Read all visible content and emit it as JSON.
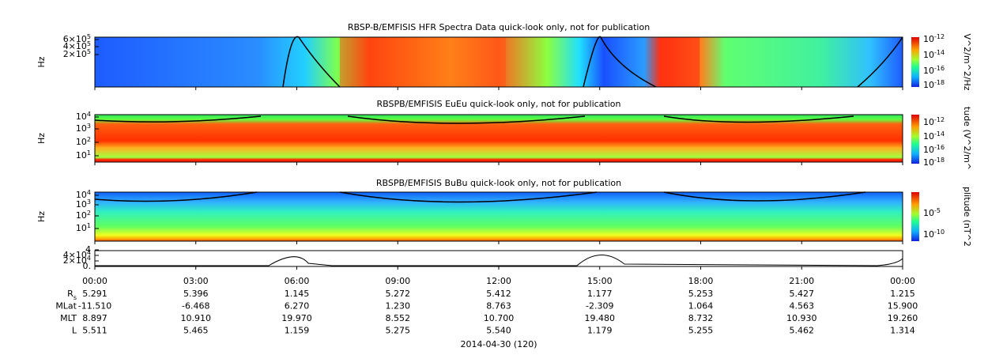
{
  "panels": [
    {
      "title": "RBSP-B/EMFISIS  HFR Spectra Data quick-look only, not for publication",
      "ylabel": "Hz",
      "yticks": [
        {
          "base": "6×10",
          "exp": "5"
        },
        {
          "base": "4×10",
          "exp": "5"
        },
        {
          "base": "2×10",
          "exp": "5"
        }
      ],
      "colorbar_label": "V^2/m^2/Hz",
      "colorbar_ticks": [
        {
          "base": "10",
          "exp": "-12"
        },
        {
          "base": "10",
          "exp": "-14"
        },
        {
          "base": "10",
          "exp": "-16"
        },
        {
          "base": "10",
          "exp": "-18"
        }
      ]
    },
    {
      "title": "RBSPB/EMFISIS  EuEu quick-look only, not for publication",
      "ylabel": "Hz",
      "yticks": [
        {
          "base": "10",
          "exp": "4"
        },
        {
          "base": "10",
          "exp": "3"
        },
        {
          "base": "10",
          "exp": "2"
        },
        {
          "base": "10",
          "exp": "1"
        }
      ],
      "colorbar_label": "tude (V^2/m^",
      "colorbar_ticks": [
        {
          "base": "10",
          "exp": "-12"
        },
        {
          "base": "10",
          "exp": "-14"
        },
        {
          "base": "10",
          "exp": "-16"
        },
        {
          "base": "10",
          "exp": "-18"
        }
      ]
    },
    {
      "title": "RBSPB/EMFISIS  BuBu quick-look only, not for publication",
      "ylabel": "Hz",
      "yticks": [
        {
          "base": "10",
          "exp": "4"
        },
        {
          "base": "10",
          "exp": "3"
        },
        {
          "base": "10",
          "exp": "2"
        },
        {
          "base": "10",
          "exp": "1"
        }
      ],
      "colorbar_label": "plitude (nT^2",
      "colorbar_ticks": [
        {
          "base": "10",
          "exp": "-5"
        },
        {
          "base": "10",
          "exp": "-10"
        }
      ]
    },
    {
      "yticks": [
        {
          "base": "4"
        },
        {
          "base": "4×10",
          "exp": "4"
        },
        {
          "base": "2×10",
          "exp": "4"
        },
        {
          "base": "0."
        }
      ]
    }
  ],
  "time_axis": {
    "labels": [
      "00:00",
      "03:00",
      "06:00",
      "09:00",
      "12:00",
      "15:00",
      "18:00",
      "21:00",
      "00:00"
    ]
  },
  "ephemeris": [
    {
      "label": "R",
      "sub": "s",
      "values": [
        "5.291",
        "5.396",
        "1.145",
        "5.272",
        "5.412",
        "1.177",
        "5.253",
        "5.427",
        "1.215"
      ]
    },
    {
      "label": "MLat",
      "values": [
        "-11.510",
        "-6.468",
        "6.270",
        "1.230",
        "8.763",
        "-2.309",
        "1.064",
        "4.563",
        "15.900"
      ]
    },
    {
      "label": "MLT",
      "values": [
        "8.897",
        "10.910",
        "19.970",
        "8.552",
        "10.700",
        "19.480",
        "8.732",
        "10.930",
        "19.260"
      ]
    },
    {
      "label": "L",
      "values": [
        "5.511",
        "5.465",
        "1.159",
        "5.275",
        "5.540",
        "1.179",
        "5.255",
        "5.462",
        "1.314"
      ]
    }
  ],
  "date": "2014-04-30 (120)"
}
